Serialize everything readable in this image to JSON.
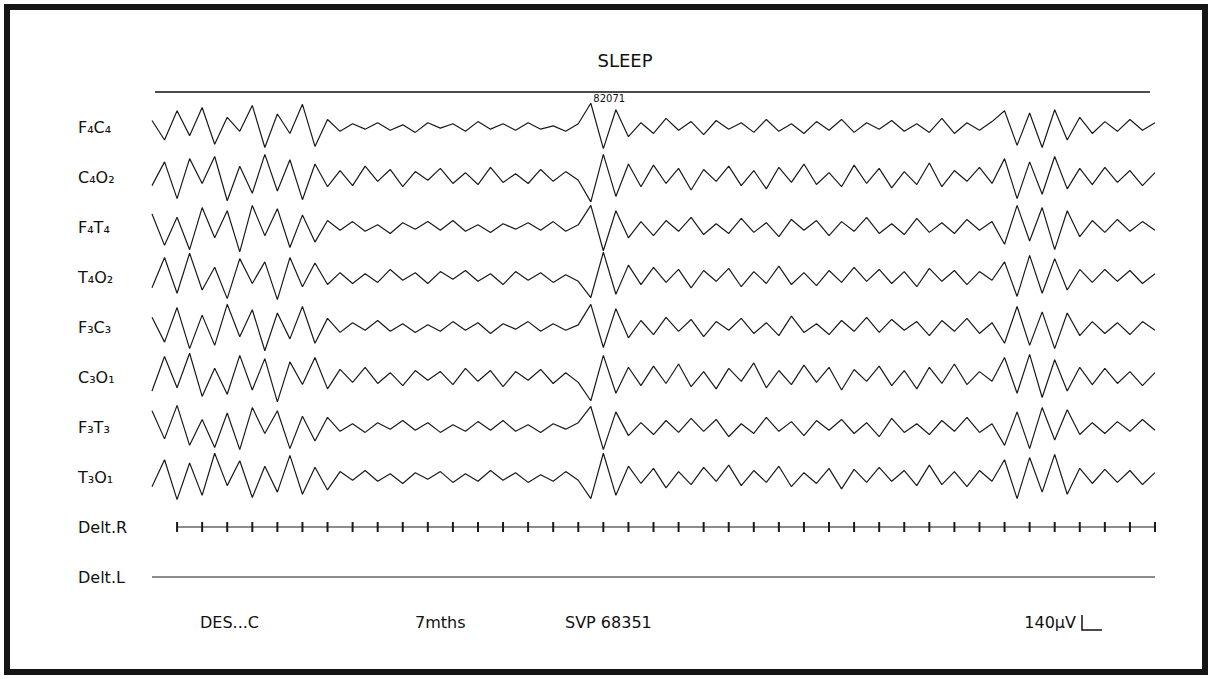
{
  "chart_data": {
    "type": "line",
    "title": "SLEEP",
    "color": "#1a1a1a",
    "grid": false,
    "tick_labels": false,
    "xlim": [
      0,
      10
    ],
    "ylim": [
      -250,
      250
    ],
    "x": [
      0,
      0.125,
      0.25,
      0.375,
      0.5,
      0.625,
      0.75,
      0.875,
      1,
      1.125,
      1.25,
      1.375,
      1.5,
      1.625,
      1.75,
      1.875,
      2,
      2.125,
      2.25,
      2.375,
      2.5,
      2.625,
      2.75,
      2.875,
      3,
      3.125,
      3.25,
      3.375,
      3.5,
      3.625,
      3.75,
      3.875,
      4,
      4.125,
      4.25,
      4.375,
      4.5,
      4.625,
      4.75,
      4.875,
      5,
      5.125,
      5.25,
      5.375,
      5.5,
      5.625,
      5.75,
      5.875,
      6,
      6.125,
      6.25,
      6.375,
      6.5,
      6.625,
      6.75,
      6.875,
      7,
      7.125,
      7.25,
      7.375,
      7.5,
      7.625,
      7.75,
      7.875,
      8,
      8.125,
      8.25,
      8.375,
      8.5,
      8.625,
      8.75,
      8.875,
      9,
      9.125,
      9.25,
      9.375,
      9.5,
      9.625,
      9.75,
      9.875,
      10
    ],
    "series": [
      {
        "name": "F₄C₄",
        "values": [
          60,
          -120,
          150,
          -80,
          180,
          -160,
          90,
          -40,
          200,
          -190,
          120,
          -60,
          210,
          -180,
          70,
          -40,
          30,
          -20,
          40,
          -30,
          20,
          -50,
          40,
          -10,
          30,
          -40,
          50,
          -20,
          30,
          -30,
          40,
          -20,
          10,
          -40,
          30,
          220,
          -200,
          160,
          -90,
          40,
          -60,
          80,
          -30,
          50,
          -70,
          60,
          -20,
          40,
          -50,
          70,
          -40,
          30,
          -60,
          50,
          -30,
          70,
          -50,
          40,
          -20,
          60,
          -40,
          30,
          -50,
          80,
          -60,
          40,
          -30,
          50,
          150,
          -170,
          130,
          -190,
          160,
          -120,
          90,
          -60,
          50,
          -40,
          70,
          -30,
          40
        ]
      },
      {
        "name": "C₄O₂",
        "values": [
          -80,
          140,
          -200,
          170,
          -60,
          190,
          -220,
          100,
          -150,
          210,
          -130,
          160,
          -210,
          120,
          -90,
          60,
          -80,
          100,
          -40,
          70,
          -90,
          50,
          -30,
          80,
          -60,
          40,
          -70,
          90,
          -50,
          30,
          -60,
          70,
          -40,
          50,
          -30,
          -230,
          210,
          -180,
          120,
          -90,
          110,
          -60,
          80,
          -120,
          70,
          -40,
          100,
          -80,
          60,
          -110,
          90,
          -50,
          120,
          -70,
          40,
          -90,
          110,
          -60,
          80,
          -100,
          50,
          -70,
          130,
          -90,
          60,
          -40,
          90,
          -60,
          170,
          -200,
          140,
          -160,
          190,
          -110,
          80,
          -70,
          90,
          -50,
          60,
          -80,
          40
        ]
      },
      {
        "name": "F₄T₄",
        "values": [
          120,
          -170,
          90,
          -210,
          180,
          -100,
          150,
          -230,
          200,
          -80,
          170,
          -190,
          110,
          -140,
          60,
          -30,
          50,
          -40,
          20,
          -60,
          40,
          -20,
          50,
          -30,
          60,
          -40,
          20,
          -50,
          30,
          -20,
          40,
          -30,
          50,
          -40,
          20,
          200,
          -220,
          150,
          -100,
          50,
          -80,
          60,
          -40,
          90,
          -70,
          30,
          -60,
          80,
          -50,
          40,
          -90,
          70,
          -30,
          60,
          -80,
          50,
          -40,
          90,
          -60,
          30,
          -70,
          80,
          -50,
          40,
          -60,
          70,
          -30,
          50,
          -160,
          200,
          -130,
          180,
          -210,
          150,
          -90,
          60,
          -50,
          70,
          -40,
          50,
          -30
        ]
      },
      {
        "name": "T₄O₂",
        "values": [
          -100,
          180,
          -150,
          220,
          -120,
          90,
          -200,
          170,
          -60,
          140,
          -210,
          180,
          -90,
          130,
          -70,
          40,
          -60,
          30,
          -50,
          70,
          -30,
          40,
          -60,
          50,
          -20,
          60,
          -40,
          30,
          -70,
          50,
          -30,
          40,
          -50,
          20,
          -40,
          -190,
          230,
          -160,
          110,
          -70,
          90,
          -50,
          70,
          -100,
          60,
          -40,
          80,
          -90,
          50,
          -60,
          100,
          -70,
          40,
          -80,
          60,
          -50,
          90,
          -40,
          70,
          -60,
          50,
          -90,
          80,
          -40,
          60,
          -70,
          50,
          -30,
          140,
          -180,
          200,
          -150,
          170,
          -120,
          70,
          -50,
          70,
          -40,
          60,
          -60,
          30
        ]
      },
      {
        "name": "F₃C₃",
        "values": [
          90,
          -140,
          180,
          -200,
          110,
          -170,
          210,
          -90,
          160,
          -220,
          130,
          -110,
          190,
          -150,
          80,
          -50,
          40,
          -30,
          60,
          -40,
          30,
          -50,
          20,
          -40,
          50,
          -30,
          40,
          -60,
          30,
          -20,
          50,
          -40,
          30,
          -30,
          20,
          210,
          -190,
          170,
          -100,
          60,
          -70,
          90,
          -40,
          70,
          -90,
          50,
          -30,
          80,
          -60,
          40,
          -80,
          100,
          -50,
          30,
          -70,
          60,
          -40,
          90,
          -50,
          70,
          -30,
          50,
          -80,
          60,
          -40,
          80,
          -60,
          40,
          -150,
          190,
          -170,
          140,
          -200,
          130,
          -80,
          50,
          -60,
          40,
          -70,
          50,
          -30
        ]
      },
      {
        "name": "C₃O₁",
        "values": [
          -130,
          190,
          -100,
          220,
          -180,
          80,
          -160,
          200,
          -120,
          170,
          -230,
          140,
          -70,
          180,
          -110,
          70,
          -50,
          90,
          -60,
          40,
          -80,
          60,
          -30,
          50,
          -70,
          80,
          -40,
          60,
          -90,
          50,
          -30,
          70,
          -60,
          40,
          -50,
          -220,
          200,
          -150,
          90,
          -80,
          100,
          -60,
          120,
          -90,
          50,
          -110,
          80,
          -40,
          130,
          -100,
          60,
          -70,
          110,
          -50,
          90,
          -120,
          70,
          -40,
          100,
          -80,
          60,
          -110,
          90,
          -60,
          120,
          -70,
          50,
          -40,
          180,
          -150,
          210,
          -190,
          160,
          -130,
          90,
          -70,
          80,
          -60,
          50,
          -80,
          40
        ]
      },
      {
        "name": "F₃T₃",
        "values": [
          150,
          -110,
          200,
          -170,
          70,
          -190,
          130,
          -210,
          180,
          -60,
          150,
          -200,
          100,
          -130,
          90,
          -40,
          30,
          -50,
          40,
          -20,
          60,
          -30,
          40,
          -50,
          20,
          -40,
          50,
          -30,
          60,
          -40,
          20,
          -50,
          30,
          -20,
          40,
          190,
          -210,
          140,
          -80,
          40,
          -70,
          60,
          -50,
          80,
          -40,
          70,
          -90,
          30,
          -60,
          90,
          -40,
          50,
          -80,
          60,
          -30,
          70,
          -60,
          40,
          -90,
          80,
          -50,
          30,
          -70,
          60,
          -40,
          90,
          -50,
          30,
          -170,
          140,
          -200,
          180,
          -120,
          160,
          -70,
          40,
          -60,
          50,
          -40,
          70,
          -30
        ]
      },
      {
        "name": "T₃O₁",
        "values": [
          -90,
          160,
          -210,
          130,
          -170,
          220,
          -80,
          150,
          -190,
          100,
          -140,
          200,
          -160,
          90,
          -120,
          50,
          -30,
          60,
          -40,
          30,
          -60,
          40,
          -20,
          50,
          -50,
          30,
          -40,
          60,
          -30,
          40,
          -50,
          20,
          -40,
          50,
          -30,
          -200,
          220,
          -170,
          100,
          -60,
          80,
          -100,
          50,
          -70,
          90,
          -40,
          110,
          -80,
          60,
          -50,
          100,
          -90,
          40,
          -60,
          80,
          -110,
          70,
          -50,
          90,
          -40,
          60,
          -80,
          110,
          -70,
          50,
          -90,
          60,
          -40,
          160,
          -200,
          180,
          -140,
          210,
          -160,
          80,
          -60,
          70,
          -50,
          60,
          -70,
          40
        ]
      },
      {
        "name": "Delt.R",
        "marker": "tick",
        "x": [
          0.25,
          0.5,
          0.75,
          1,
          1.25,
          1.5,
          1.75,
          2,
          2.25,
          2.5,
          2.75,
          3,
          3.25,
          3.5,
          3.75,
          4,
          4.25,
          4.5,
          4.75,
          5,
          5.25,
          5.5,
          5.75,
          6,
          6.25,
          6.5,
          6.75,
          7,
          7.25,
          7.5,
          7.75,
          8,
          8.25,
          8.5,
          8.75,
          9,
          9.25,
          9.5,
          9.75,
          10
        ],
        "values": [
          0,
          0,
          0,
          0,
          0,
          0,
          0,
          0,
          0,
          0,
          0,
          0,
          0,
          0,
          0,
          0,
          0,
          0,
          0,
          0,
          0,
          0,
          0,
          0,
          0,
          0,
          0,
          0,
          0,
          0,
          0,
          0,
          0,
          0,
          0,
          0,
          0,
          0,
          0,
          0
        ]
      },
      {
        "name": "Delt.L",
        "x": [
          0,
          10
        ],
        "values": [
          0,
          0
        ]
      }
    ],
    "annotations": [
      {
        "text": "82071",
        "x": 4.4
      }
    ],
    "footer": [
      "DES...C",
      "7mths",
      "SVP 68351"
    ],
    "calibration": {
      "label": "140μV",
      "value": 140
    }
  }
}
